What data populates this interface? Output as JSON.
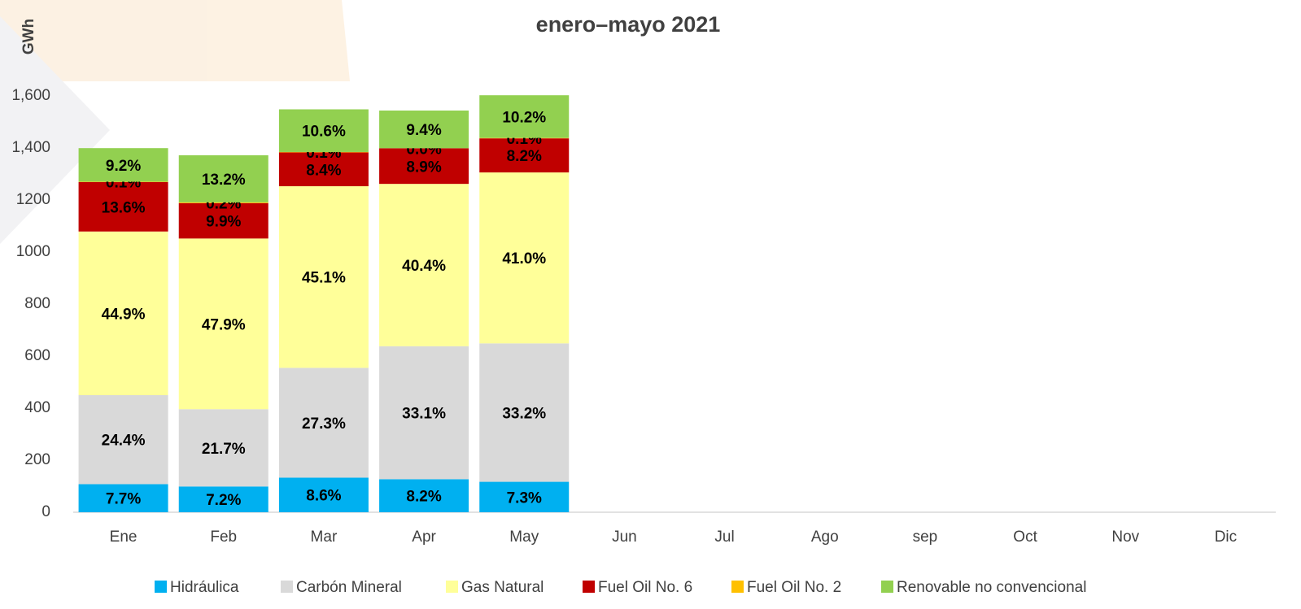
{
  "chart_data": {
    "type": "bar",
    "stacked": true,
    "title": "enero–mayo 2021",
    "y_label": "GWh",
    "categories": [
      "Ene",
      "Feb",
      "Mar",
      "Apr",
      "May",
      "Jun",
      "Jul",
      "Ago",
      "sep",
      "Oct",
      "Nov",
      "Dic"
    ],
    "ylim": [
      0,
      1600
    ],
    "yticks": [
      0,
      200,
      400,
      600,
      800,
      1000,
      1200,
      {
        "value": 1400,
        "label": "1,400"
      },
      {
        "value": 1600,
        "label": "1,600"
      }
    ],
    "yticks_fix": null,
    "series": [
      {
        "name": "Hidráulica",
        "color": "#00b0f0",
        "values": [
          108,
          99,
          133,
          127,
          117,
          null,
          null,
          null,
          null,
          null,
          null,
          null
        ],
        "value_labels": [
          "7.7%",
          "7.2%",
          "8.6%",
          "8.2%",
          "7.3%",
          null,
          null,
          null,
          null,
          null,
          null,
          null
        ]
      },
      {
        "name": "Carbón Mineral",
        "color": "#d9d9d9",
        "values": [
          342,
          297,
          422,
          511,
          532,
          null,
          null,
          null,
          null,
          null,
          null,
          null
        ],
        "value_labels": [
          "24.4%",
          "21.7%",
          "27.3%",
          "33.1%",
          "33.2%",
          null,
          null,
          null,
          null,
          null,
          null,
          null
        ]
      },
      {
        "name": "Gas Natural",
        "color": "#ffff99",
        "values": [
          629,
          656,
          698,
          624,
          657,
          null,
          null,
          null,
          null,
          null,
          null,
          null
        ],
        "value_labels": [
          "44.9%",
          "47.9%",
          "45.1%",
          "40.4%",
          "41.0%",
          null,
          null,
          null,
          null,
          null,
          null,
          null
        ]
      },
      {
        "name": "Fuel Oil No. 6",
        "color": "#c00000",
        "values": [
          190,
          136,
          130,
          137,
          131,
          null,
          null,
          null,
          null,
          null,
          null,
          null
        ],
        "value_labels": [
          "13.6%",
          "9.9%",
          "8.4%",
          "8.9%",
          "8.2%",
          null,
          null,
          null,
          null,
          null,
          null,
          null
        ]
      },
      {
        "name": "Fuel Oil No. 2",
        "color": "#ffc000",
        "values": [
          1.4,
          3,
          1.5,
          0,
          1.6,
          null,
          null,
          null,
          null,
          null,
          null,
          null
        ],
        "value_labels": [
          "0.1%",
          "0.2%",
          "0.1%",
          "0.0%",
          "0.1%",
          null,
          null,
          null,
          null,
          null,
          null,
          null
        ]
      },
      {
        "name": "Renovable no convencional",
        "color": "#92d050",
        "values": [
          129,
          181,
          164,
          145,
          164,
          null,
          null,
          null,
          null,
          null,
          null,
          null
        ],
        "value_labels": [
          "9.2%",
          "13.2%",
          "10.6%",
          "9.4%",
          "10.2%",
          null,
          null,
          null,
          null,
          null,
          null,
          null
        ]
      }
    ]
  }
}
